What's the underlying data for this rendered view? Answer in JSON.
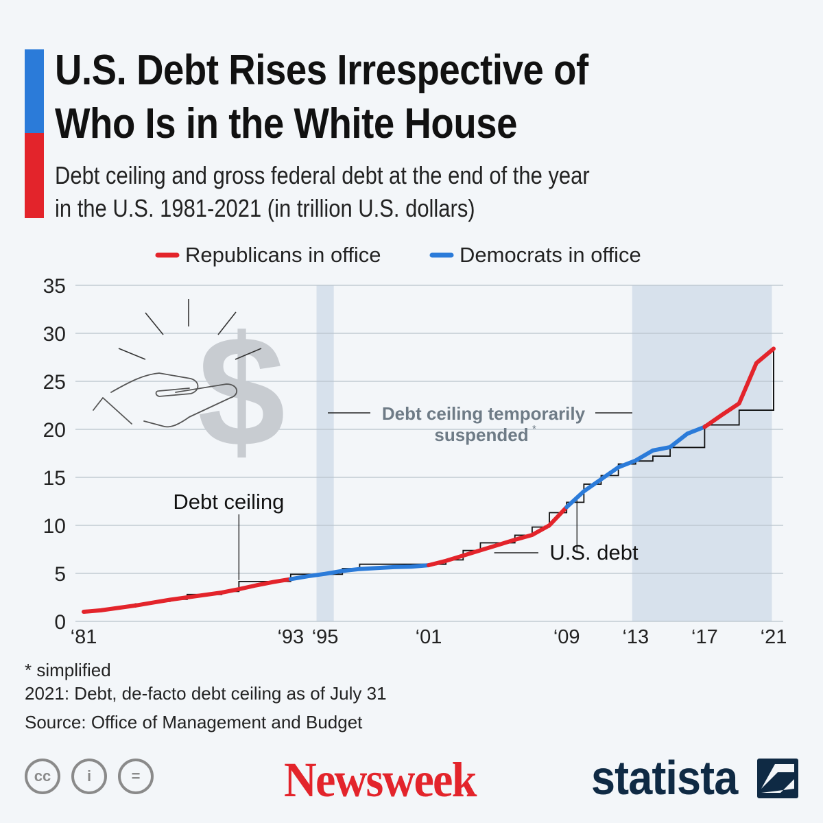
{
  "title": "U.S. Debt Rises Irrespective of\nWho Is in the White House",
  "subtitle": "Debt ceiling and gross federal debt at the end of the year\nin the U.S. 1981-2021 (in trillion U.S. dollars)",
  "colors": {
    "republican": "#e3242b",
    "democrat": "#2b7bd9",
    "ceiling_line": "#111111",
    "shade": "#d7e1ec",
    "grid": "#b9c2cc",
    "illustration": "#c8ccd1",
    "annotation_gray": "#6e7b86",
    "newsweek_red": "#e3242b",
    "statista_navy": "#0f2a44"
  },
  "chart_data": {
    "type": "line",
    "title": "U.S. Debt Rises Irrespective of Who Is in the White House",
    "ylabel": "trillion U.S. dollars",
    "ylim": [
      0,
      35
    ],
    "xlim": [
      1981,
      2021
    ],
    "yticks": [
      0,
      5,
      10,
      15,
      20,
      25,
      30,
      35
    ],
    "xtick_labels": [
      {
        "label": "‘81",
        "year": 1981
      },
      {
        "label": "‘93",
        "year": 1993
      },
      {
        "label": "‘95",
        "year": 1995
      },
      {
        "label": "‘01",
        "year": 2001
      },
      {
        "label": "‘09",
        "year": 2009
      },
      {
        "label": "‘13",
        "year": 2013
      },
      {
        "label": "‘17",
        "year": 2017
      },
      {
        "label": "‘21",
        "year": 2021
      }
    ],
    "grid": true,
    "legend": [
      {
        "name": "Republicans in office",
        "color_key": "republican"
      },
      {
        "name": "Democrats in office",
        "color_key": "democrat"
      }
    ],
    "shaded_periods": [
      {
        "start": 1994.5,
        "end": 1995.5,
        "label": ""
      },
      {
        "start": 2012.8,
        "end": 2020.9,
        "label": ""
      }
    ],
    "series": [
      {
        "name": "U.S. debt",
        "points": [
          [
            1981,
            1.0
          ],
          [
            1982,
            1.15
          ],
          [
            1983,
            1.4
          ],
          [
            1984,
            1.65
          ],
          [
            1985,
            1.95
          ],
          [
            1986,
            2.25
          ],
          [
            1987,
            2.5
          ],
          [
            1988,
            2.75
          ],
          [
            1989,
            3.0
          ],
          [
            1990,
            3.35
          ],
          [
            1991,
            3.75
          ],
          [
            1992,
            4.1
          ],
          [
            1993,
            4.4
          ],
          [
            1994,
            4.7
          ],
          [
            1995,
            4.95
          ],
          [
            1996,
            5.25
          ],
          [
            1997,
            5.45
          ],
          [
            1998,
            5.55
          ],
          [
            1999,
            5.65
          ],
          [
            2000,
            5.7
          ],
          [
            2001,
            5.85
          ],
          [
            2002,
            6.3
          ],
          [
            2003,
            6.85
          ],
          [
            2004,
            7.4
          ],
          [
            2005,
            7.95
          ],
          [
            2006,
            8.5
          ],
          [
            2007,
            9.0
          ],
          [
            2008,
            10.0
          ],
          [
            2009,
            11.9
          ],
          [
            2010,
            13.55
          ],
          [
            2011,
            14.8
          ],
          [
            2012,
            16.05
          ],
          [
            2013,
            16.75
          ],
          [
            2014,
            17.8
          ],
          [
            2015,
            18.15
          ],
          [
            2016,
            19.55
          ],
          [
            2017,
            20.25
          ],
          [
            2018,
            21.5
          ],
          [
            2019,
            22.7
          ],
          [
            2020,
            26.9
          ],
          [
            2021,
            28.4
          ]
        ],
        "party_segments": [
          {
            "from": 1981,
            "to": 1993,
            "party": "republican"
          },
          {
            "from": 1993,
            "to": 2001,
            "party": "democrat"
          },
          {
            "from": 2001,
            "to": 2009,
            "party": "republican"
          },
          {
            "from": 2009,
            "to": 2017,
            "party": "democrat"
          },
          {
            "from": 2017,
            "to": 2021,
            "party": "republican"
          }
        ]
      },
      {
        "name": "Debt ceiling",
        "type": "step",
        "points": [
          [
            1981,
            1.08
          ],
          [
            1982,
            1.29
          ],
          [
            1983,
            1.49
          ],
          [
            1984,
            1.82
          ],
          [
            1985,
            2.08
          ],
          [
            1986,
            2.3
          ],
          [
            1987,
            2.8
          ],
          [
            1989,
            3.12
          ],
          [
            1990,
            4.15
          ],
          [
            1993,
            4.9
          ],
          [
            1996,
            5.5
          ],
          [
            1997,
            5.95
          ],
          [
            2002,
            6.4
          ],
          [
            2003,
            7.38
          ],
          [
            2004,
            8.18
          ],
          [
            2006,
            8.97
          ],
          [
            2007,
            9.82
          ],
          [
            2008,
            11.32
          ],
          [
            2009,
            12.4
          ],
          [
            2010,
            14.29
          ],
          [
            2011,
            15.19
          ],
          [
            2012,
            16.39
          ],
          [
            2013,
            16.7
          ],
          [
            2014,
            17.21
          ],
          [
            2015,
            18.11
          ],
          [
            2017,
            20.46
          ],
          [
            2019,
            21.99
          ],
          [
            2021,
            28.5
          ]
        ]
      }
    ],
    "annotations": [
      {
        "text": "Debt ceiling",
        "anchor_year": 1990,
        "anchor_value": 4.3
      },
      {
        "text": "U.S. debt",
        "anchor_year": 2009.6,
        "anchor_value": 13.0
      },
      {
        "text_line1": "Debt ceiling temporarily",
        "text_line2": "suspended",
        "superscript": "*"
      }
    ]
  },
  "footnotes": {
    "simplified": "* simplified",
    "note_2021": "2021: Debt, de-facto debt ceiling as of July 31",
    "source": "Source: Office of Management and Budget"
  },
  "license_icons": [
    {
      "name": "creative-commons-icon",
      "glyph": "cc"
    },
    {
      "name": "attribution-icon",
      "glyph": "i"
    },
    {
      "name": "no-derivatives-icon",
      "glyph": "="
    }
  ],
  "logos": {
    "newsweek": "Newsweek",
    "statista": "statista"
  }
}
